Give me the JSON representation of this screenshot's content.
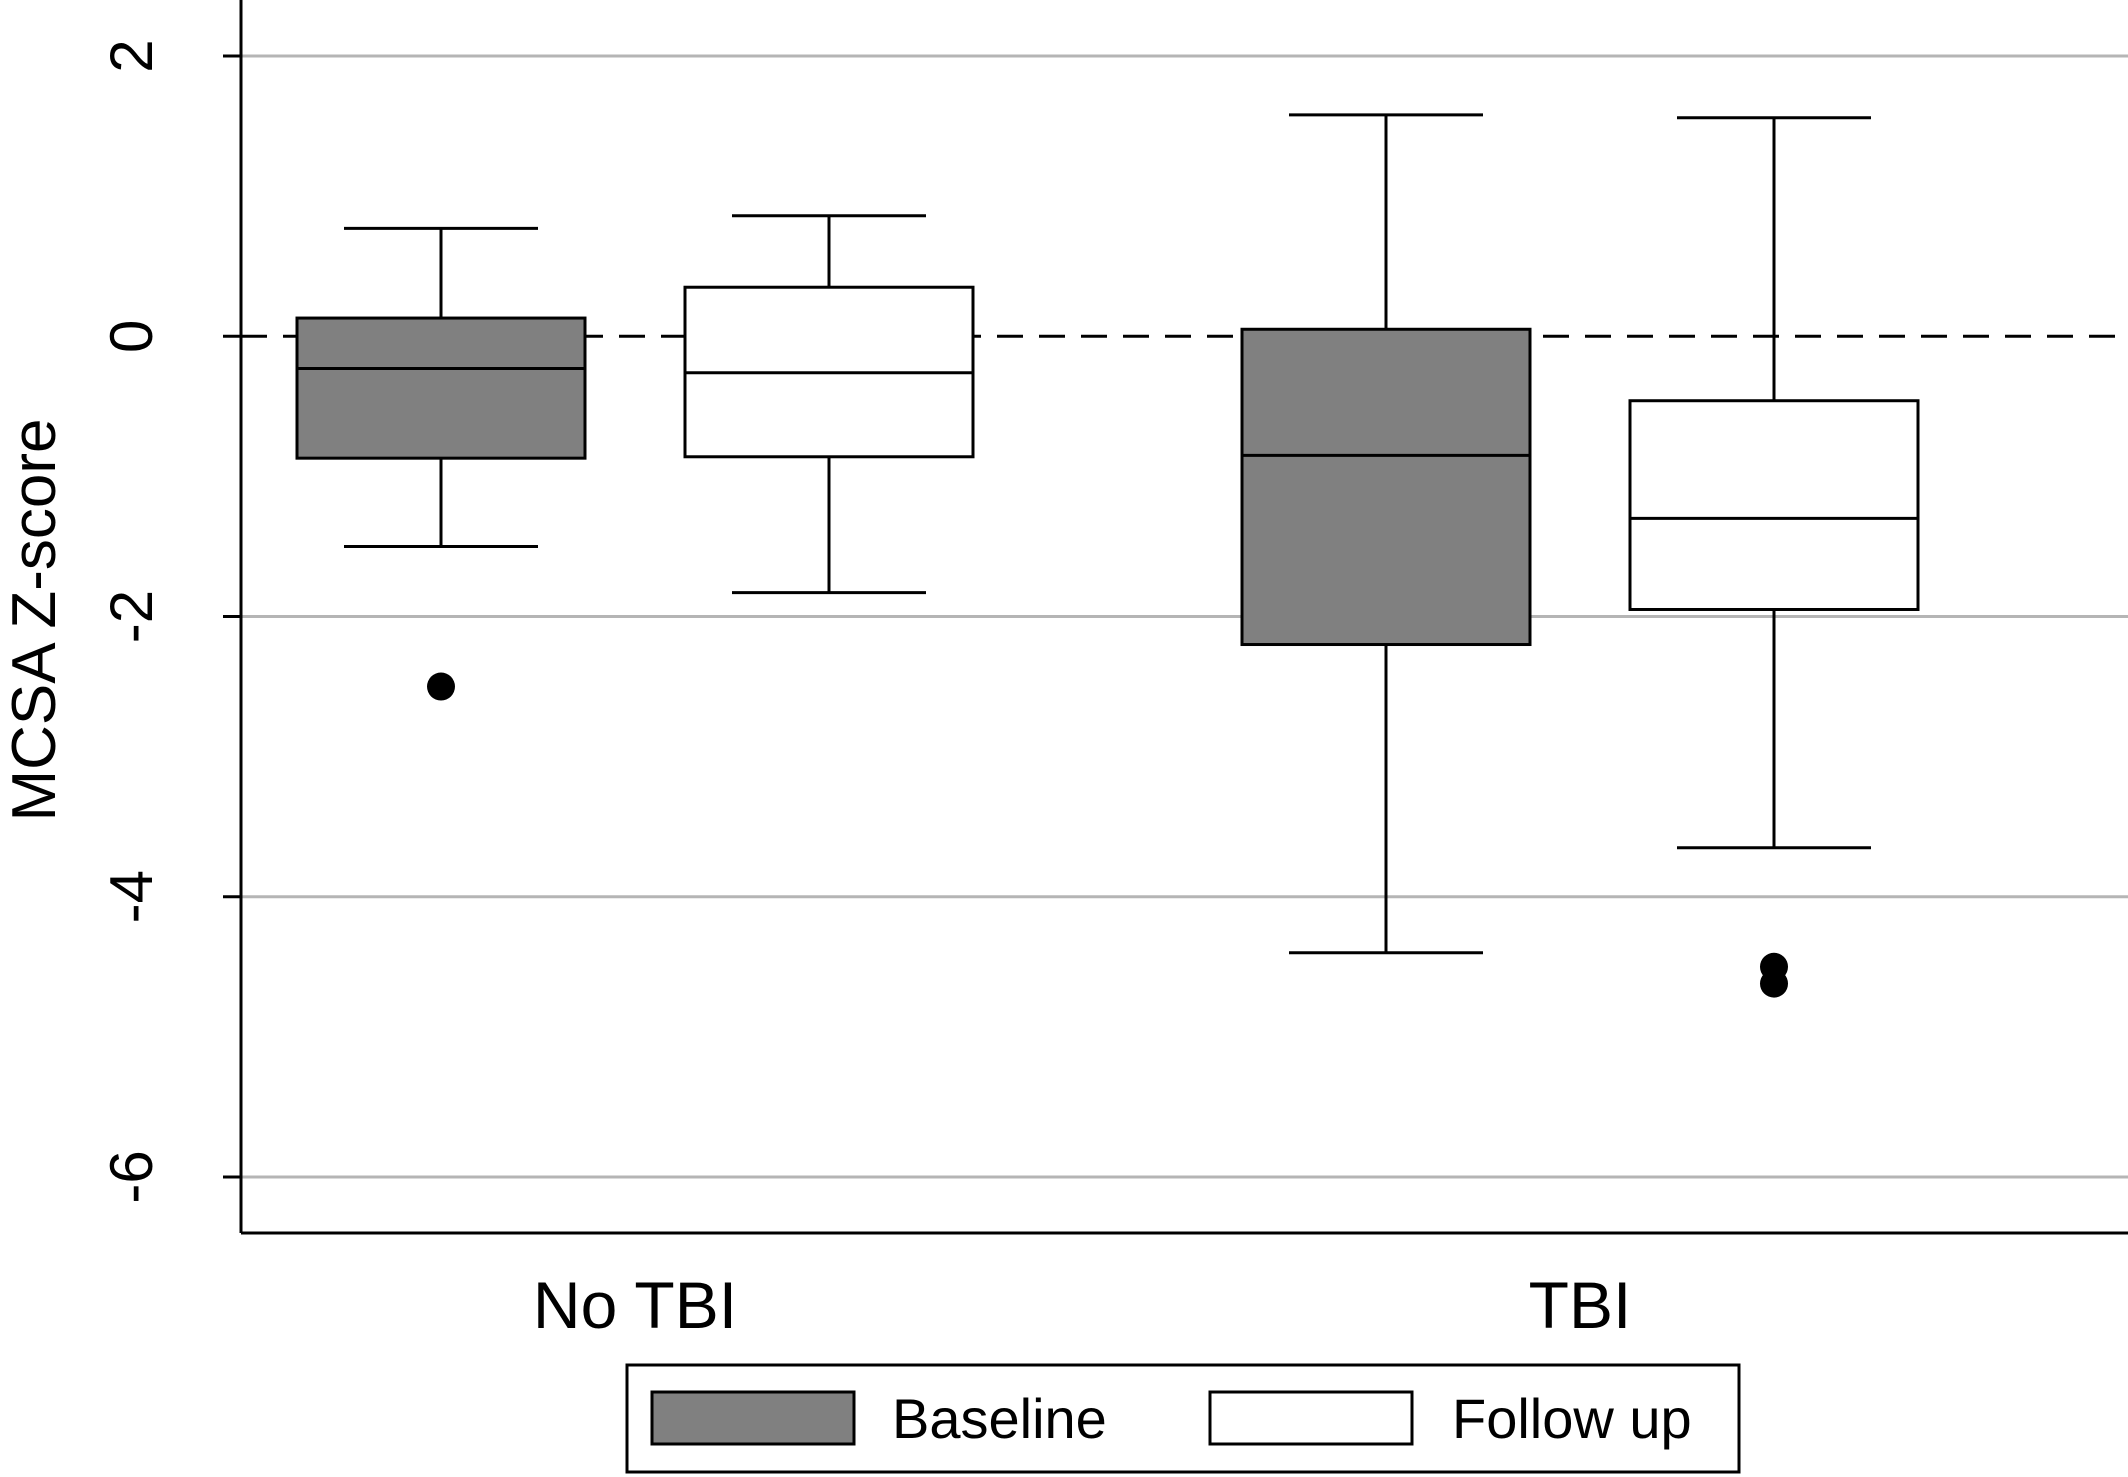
{
  "chart_data": {
    "type": "box",
    "ylabel": "MCSA Z-score",
    "xlabel": "",
    "ylim": [
      -6.4,
      2.4
    ],
    "yticks": [
      2,
      0,
      -2,
      -4,
      -6
    ],
    "ytick_labels": [
      "2",
      "0",
      "-2",
      "-4",
      "-6"
    ],
    "grid": true,
    "reference_line": 0,
    "categories": [
      "No TBI",
      "TBI"
    ],
    "legend_position": "bottom",
    "series": [
      {
        "name": "Baseline",
        "color": "#808080",
        "boxes": [
          {
            "category": "No TBI",
            "whisker_low": -1.5,
            "q1": -0.87,
            "median": -0.23,
            "q3": 0.13,
            "whisker_high": 0.77,
            "outliers": [
              -2.5
            ]
          },
          {
            "category": "TBI",
            "whisker_low": -4.4,
            "q1": -2.2,
            "median": -0.85,
            "q3": 0.05,
            "whisker_high": 1.58,
            "outliers": []
          }
        ]
      },
      {
        "name": "Follow up",
        "color": "#ffffff",
        "boxes": [
          {
            "category": "No TBI",
            "whisker_low": -1.83,
            "q1": -0.86,
            "median": -0.26,
            "q3": 0.35,
            "whisker_high": 0.86,
            "outliers": []
          },
          {
            "category": "TBI",
            "whisker_low": -3.65,
            "q1": -1.95,
            "median": -1.3,
            "q3": -0.46,
            "whisker_high": 1.56,
            "outliers": [
              -4.5,
              -4.62
            ]
          }
        ]
      }
    ]
  }
}
